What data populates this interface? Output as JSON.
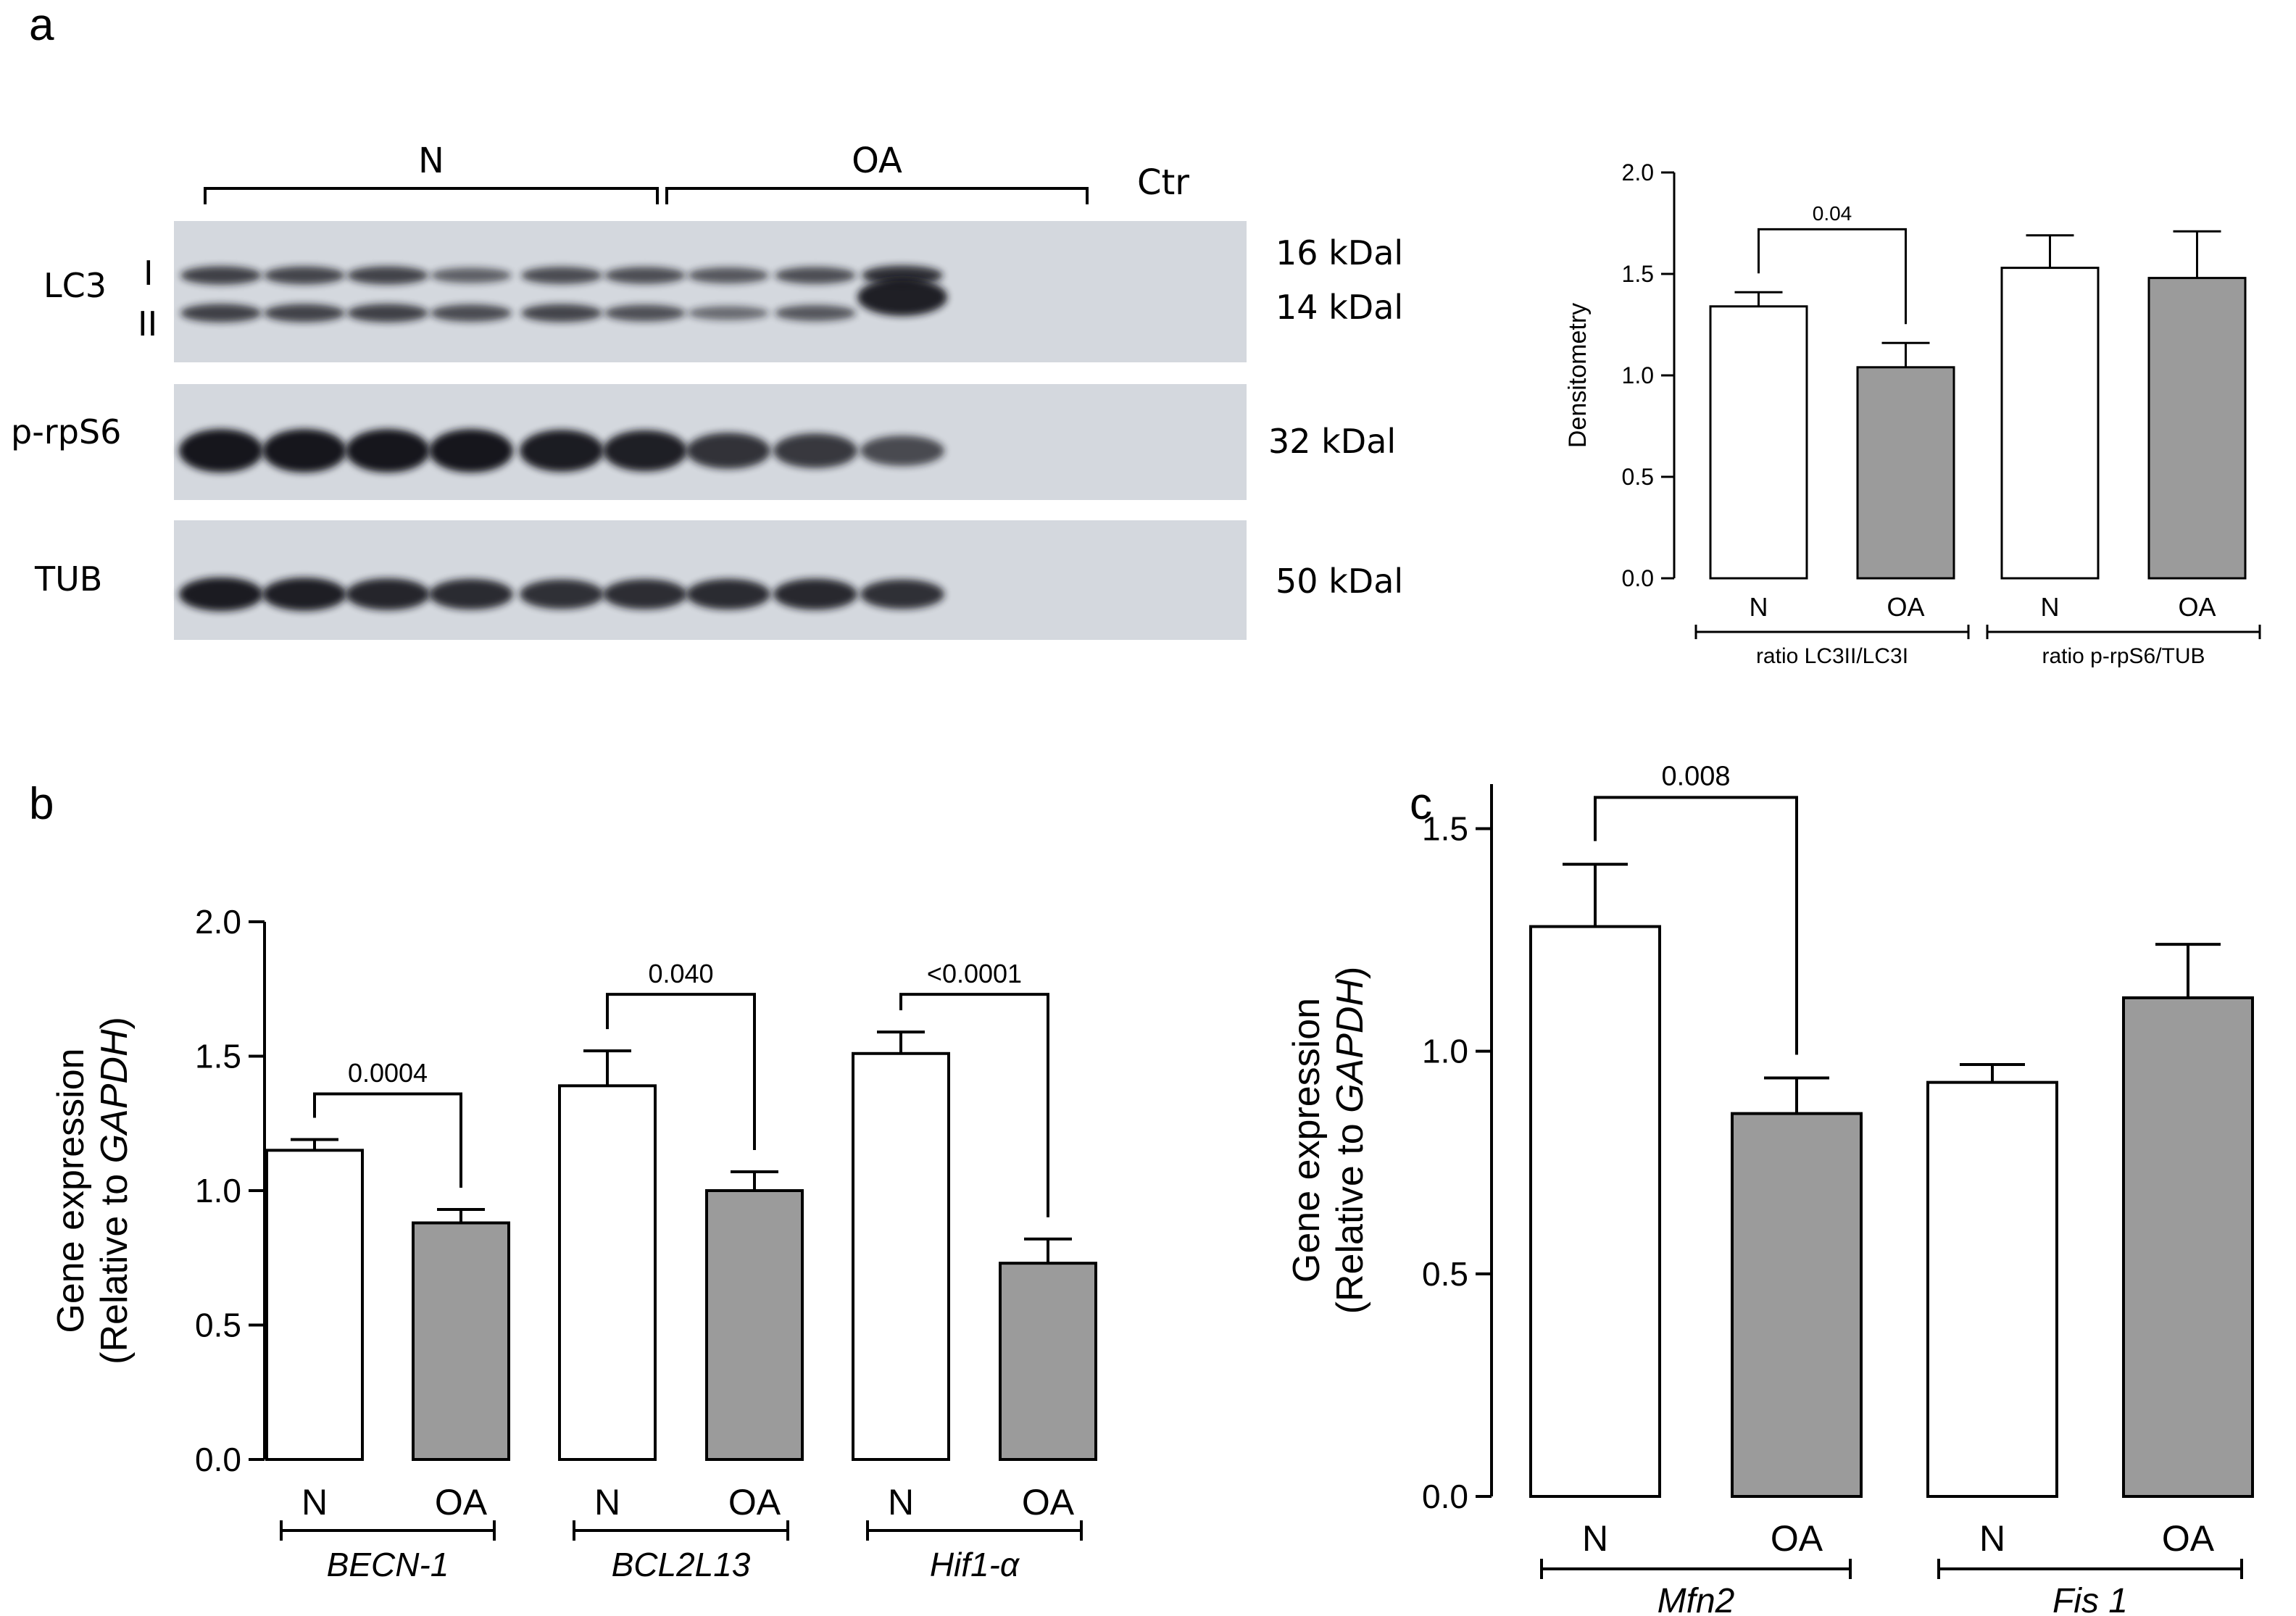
{
  "panels": {
    "a": "a",
    "b": "b",
    "c": "c"
  },
  "blot": {
    "groups": [
      "N",
      "OA",
      "Ctr"
    ],
    "rows": [
      {
        "name": "LC3",
        "bands": [
          "I",
          "II"
        ],
        "mw": [
          "16 kDal",
          "14 kDal"
        ]
      },
      {
        "name": "p-rpS6",
        "bands": [],
        "mw": [
          "32 kDal"
        ]
      },
      {
        "name": "TUB",
        "bands": [],
        "mw": [
          "50 kDal"
        ]
      }
    ],
    "intensity": {
      "lc3_I": [
        0.72,
        0.68,
        0.7,
        0.45,
        0.62,
        0.6,
        0.52,
        0.6,
        0.85
      ],
      "lc3_II": [
        0.72,
        0.7,
        0.72,
        0.62,
        0.68,
        0.58,
        0.35,
        0.52,
        1.0
      ],
      "prps6": [
        1.0,
        1.0,
        1.0,
        1.0,
        0.95,
        0.92,
        0.75,
        0.7,
        0.55
      ],
      "tub": [
        0.95,
        0.92,
        0.85,
        0.8,
        0.75,
        0.78,
        0.8,
        0.82,
        0.75
      ]
    },
    "colors": {
      "background": "#d4d8de",
      "band": "#15181c"
    }
  },
  "chart_data": [
    {
      "panel": "a",
      "type": "bar",
      "ylabel": "Densitometry",
      "ylim": [
        0,
        2.0
      ],
      "yticks": [
        "0.0",
        "0.5",
        "1.0",
        "1.5",
        "2.0"
      ],
      "bars": [
        {
          "label": "N",
          "value": 1.34,
          "error": 0.07,
          "color": "#ffffff"
        },
        {
          "label": "OA",
          "value": 1.04,
          "error": 0.12,
          "color": "#9b9b9b"
        },
        {
          "label": "N",
          "value": 1.53,
          "error": 0.16,
          "color": "#ffffff"
        },
        {
          "label": "OA",
          "value": 1.48,
          "error": 0.23,
          "color": "#9b9b9b"
        }
      ],
      "groups": [
        {
          "label": "ratio LC3II/LC3I",
          "italic": false
        },
        {
          "label": "ratio p-rpS6/TUB",
          "italic": false
        }
      ],
      "comparisons": [
        {
          "bars": [
            0,
            1
          ],
          "label": "0.04",
          "height": 1.72
        }
      ]
    },
    {
      "panel": "b",
      "type": "bar",
      "ylabel": [
        "Gene expression",
        "(Relative to ",
        "GAPDH",
        ")"
      ],
      "ylim": [
        0,
        2.0
      ],
      "yticks": [
        "0.0",
        "0.5",
        "1.0",
        "1.5",
        "2.0"
      ],
      "bars": [
        {
          "label": "N",
          "value": 1.15,
          "error": 0.04,
          "color": "#ffffff"
        },
        {
          "label": "OA",
          "value": 0.88,
          "error": 0.05,
          "color": "#9b9b9b"
        },
        {
          "label": "N",
          "value": 1.39,
          "error": 0.13,
          "color": "#ffffff"
        },
        {
          "label": "OA",
          "value": 1.0,
          "error": 0.07,
          "color": "#9b9b9b"
        },
        {
          "label": "N",
          "value": 1.51,
          "error": 0.08,
          "color": "#ffffff"
        },
        {
          "label": "OA",
          "value": 0.73,
          "error": 0.09,
          "color": "#9b9b9b"
        }
      ],
      "groups": [
        {
          "label": "BECN-1",
          "italic": true
        },
        {
          "label": "BCL2L13",
          "italic": true
        },
        {
          "label": "Hif1-α",
          "italic": true
        }
      ],
      "comparisons": [
        {
          "bars": [
            0,
            1
          ],
          "label": "0.0004",
          "height": 1.36
        },
        {
          "bars": [
            2,
            3
          ],
          "label": "0.040",
          "height": 1.73
        },
        {
          "bars": [
            4,
            5
          ],
          "label": "<0.0001",
          "height": 1.73
        }
      ]
    },
    {
      "panel": "c",
      "type": "bar",
      "ylabel": [
        "Gene expression",
        "(Relative to ",
        "GAPDH",
        ")"
      ],
      "ylim": [
        0,
        1.6
      ],
      "yticks": [
        "0.0",
        "0.5",
        "1.0",
        "1.5"
      ],
      "bars": [
        {
          "label": "N",
          "value": 1.28,
          "error": 0.14,
          "color": "#ffffff"
        },
        {
          "label": "OA",
          "value": 0.86,
          "error": 0.08,
          "color": "#9b9b9b"
        },
        {
          "label": "N",
          "value": 0.93,
          "error": 0.04,
          "color": "#ffffff"
        },
        {
          "label": "OA",
          "value": 1.12,
          "error": 0.12,
          "color": "#9b9b9b"
        }
      ],
      "groups": [
        {
          "label": "Mfn2",
          "italic": true
        },
        {
          "label": "Fis 1",
          "italic": true
        }
      ],
      "comparisons": [
        {
          "bars": [
            0,
            1
          ],
          "label": "0.008",
          "height": 1.57
        }
      ]
    }
  ]
}
